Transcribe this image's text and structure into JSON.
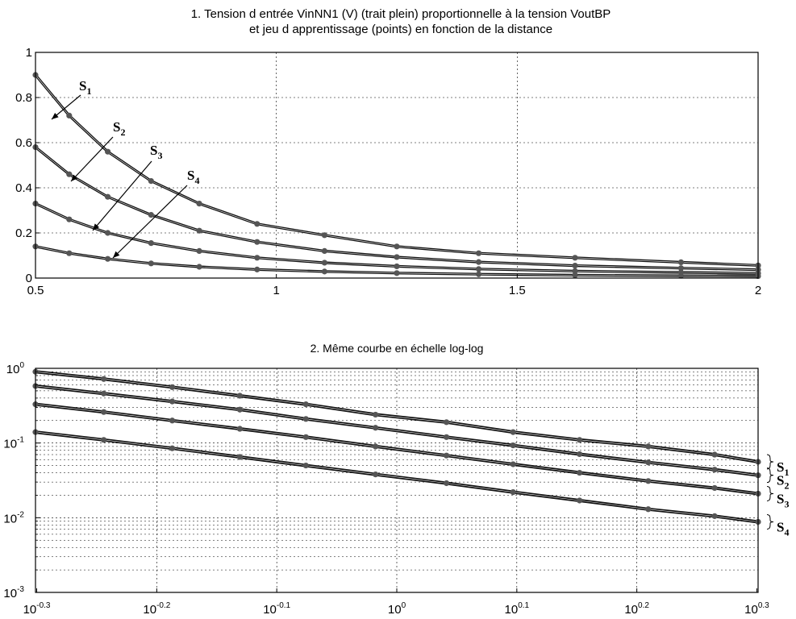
{
  "chart_data": [
    {
      "type": "line",
      "title_line1": "1. Tension d entrée VinNN1 (V) (trait plein) proportionnelle à la tension VoutBP",
      "title_line2": "et jeu d apprentissage (points) en fonction de la distance",
      "xlim": [
        0.5,
        2
      ],
      "ylim": [
        0,
        1
      ],
      "x_ticks": [
        "0.5",
        "1",
        "1.5",
        "2"
      ],
      "y_ticks": [
        "0",
        "0.2",
        "0.4",
        "0.6",
        "0.8",
        "1"
      ],
      "grid": true,
      "x": [
        0.5,
        0.57,
        0.65,
        0.74,
        0.84,
        0.96,
        1.1,
        1.25,
        1.42,
        1.62,
        1.84,
        2.0
      ],
      "series": [
        {
          "name": "S1",
          "values": [
            0.9,
            0.72,
            0.56,
            0.43,
            0.33,
            0.24,
            0.19,
            0.14,
            0.11,
            0.09,
            0.07,
            0.056
          ]
        },
        {
          "name": "S2",
          "values": [
            0.58,
            0.46,
            0.36,
            0.28,
            0.21,
            0.16,
            0.12,
            0.093,
            0.071,
            0.055,
            0.044,
            0.037
          ]
        },
        {
          "name": "S3",
          "values": [
            0.33,
            0.26,
            0.2,
            0.155,
            0.12,
            0.09,
            0.068,
            0.052,
            0.04,
            0.031,
            0.025,
            0.021
          ]
        },
        {
          "name": "S4",
          "values": [
            0.14,
            0.11,
            0.085,
            0.065,
            0.05,
            0.038,
            0.029,
            0.022,
            0.017,
            0.013,
            0.0105,
            0.0088
          ]
        }
      ],
      "labels": [
        "S1",
        "S2",
        "S3",
        "S4"
      ]
    },
    {
      "type": "line",
      "title": "2. Même courbe en échelle log-log",
      "scale": "log-log",
      "xlim": [
        0.5,
        2
      ],
      "ylim": [
        0.001,
        1
      ],
      "x_ticks": [
        "10^-0.3",
        "10^-0.2",
        "10^-0.1",
        "10^0",
        "10^0.1",
        "10^0.2",
        "10^0.3"
      ],
      "y_ticks": [
        "10^-3",
        "10^-2",
        "10^-1",
        "10^0"
      ],
      "grid": true,
      "x": [
        0.5,
        0.57,
        0.65,
        0.74,
        0.84,
        0.96,
        1.1,
        1.25,
        1.42,
        1.62,
        1.84,
        2.0
      ],
      "series": [
        {
          "name": "S1",
          "values": [
            0.9,
            0.72,
            0.56,
            0.43,
            0.33,
            0.24,
            0.19,
            0.14,
            0.11,
            0.09,
            0.07,
            0.056
          ]
        },
        {
          "name": "S2",
          "values": [
            0.58,
            0.46,
            0.36,
            0.28,
            0.21,
            0.16,
            0.12,
            0.093,
            0.071,
            0.055,
            0.044,
            0.037
          ]
        },
        {
          "name": "S3",
          "values": [
            0.33,
            0.26,
            0.2,
            0.155,
            0.12,
            0.09,
            0.068,
            0.052,
            0.04,
            0.031,
            0.025,
            0.021
          ]
        },
        {
          "name": "S4",
          "values": [
            0.14,
            0.11,
            0.085,
            0.065,
            0.05,
            0.038,
            0.029,
            0.022,
            0.017,
            0.013,
            0.0105,
            0.0088
          ]
        }
      ],
      "labels": [
        "S1",
        "S2",
        "S3",
        "S4"
      ]
    }
  ]
}
